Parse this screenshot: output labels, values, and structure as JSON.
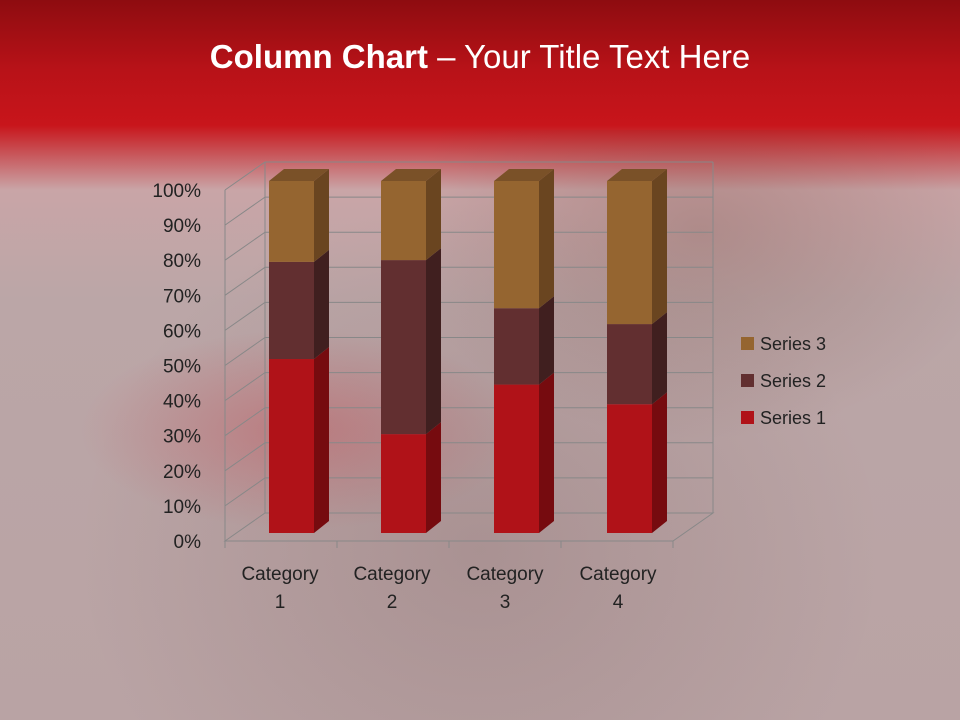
{
  "slide": {
    "title_bold": "Column Chart",
    "title_rest": " – Your Title Text Here"
  },
  "chart_data": {
    "type": "bar",
    "subtype": "100% stacked 3D column",
    "categories": [
      "Category 1",
      "Category 2",
      "Category 3",
      "Category 4"
    ],
    "category_lines": [
      [
        "Category",
        "1"
      ],
      [
        "Category",
        "2"
      ],
      [
        "Category",
        "3"
      ],
      [
        "Category",
        "4"
      ]
    ],
    "series": [
      {
        "name": "Series 1",
        "values": [
          4.3,
          2.5,
          3.5,
          4.5
        ],
        "color": "#b01218",
        "side": "#760b0f"
      },
      {
        "name": "Series 2",
        "values": [
          2.4,
          4.4,
          1.8,
          2.8
        ],
        "color": "#622f30",
        "side": "#401f1f"
      },
      {
        "name": "Series 3",
        "values": [
          2,
          2,
          3,
          5
        ],
        "color": "#956530",
        "side": "#6a4520"
      }
    ],
    "yticks": [
      "0%",
      "10%",
      "20%",
      "30%",
      "40%",
      "50%",
      "60%",
      "70%",
      "80%",
      "90%",
      "100%"
    ],
    "ylim": [
      0,
      100
    ],
    "grid": true,
    "legend": "right"
  }
}
